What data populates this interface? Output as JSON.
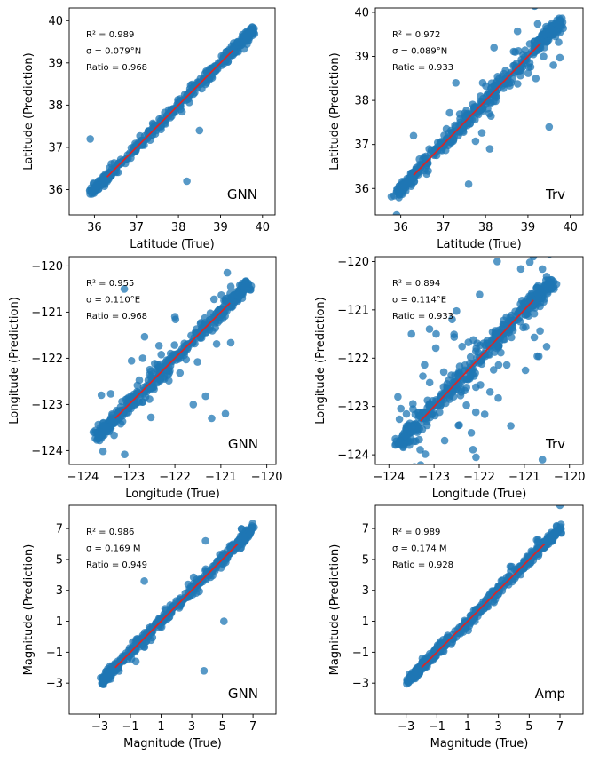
{
  "figure": {
    "point_color": "#1f77b4",
    "fit_color": "#d62728"
  },
  "chart_data": [
    {
      "type": "scatter",
      "id": "lat-gnn",
      "xlabel": "Latitude (True)",
      "ylabel": "Latitude (Prediction)",
      "xlim": [
        35.4,
        40.3
      ],
      "ylim": [
        35.4,
        40.3
      ],
      "xticks": [
        36,
        37,
        38,
        39,
        40
      ],
      "yticks": [
        36,
        37,
        38,
        39,
        40
      ],
      "xtick_labels": [
        "36",
        "37",
        "38",
        "39",
        "40"
      ],
      "ytick_labels": [
        "36",
        "37",
        "38",
        "39",
        "40"
      ],
      "fit_line": [
        [
          36.3,
          36.3
        ],
        [
          39.3,
          39.3
        ]
      ],
      "stats": [
        "R² = 0.989",
        "σ = 0.079°N",
        "Ratio  = 0.968"
      ],
      "tag": "GNN",
      "outliers": [
        [
          35.9,
          37.2
        ],
        [
          38.2,
          36.2
        ],
        [
          38.5,
          37.4
        ]
      ],
      "gen": {
        "lo": 35.9,
        "hi": 39.8,
        "n": 320,
        "noise": 0.07,
        "extra": 0.16,
        "extra_n": 18
      }
    },
    {
      "type": "scatter",
      "id": "lat-trv",
      "xlabel": "Latitude (True)",
      "ylabel": "Latitude (Prediction)",
      "xlim": [
        35.4,
        40.3
      ],
      "ylim": [
        35.4,
        40.1
      ],
      "xticks": [
        36,
        37,
        38,
        39,
        40
      ],
      "yticks": [
        36,
        37,
        38,
        39,
        40
      ],
      "xtick_labels": [
        "36",
        "37",
        "38",
        "39",
        "40"
      ],
      "ytick_labels": [
        "36",
        "37",
        "38",
        "39",
        "40"
      ],
      "fit_line": [
        [
          36.3,
          36.3
        ],
        [
          39.3,
          39.3
        ]
      ],
      "stats": [
        "R² = 0.972",
        "σ = 0.089°N",
        "Ratio  = 0.933"
      ],
      "tag": "Trv",
      "outliers": [
        [
          35.9,
          35.4
        ],
        [
          37.6,
          36.1
        ],
        [
          38.2,
          39.2
        ],
        [
          39.6,
          38.8
        ],
        [
          39.5,
          37.4
        ],
        [
          37.3,
          38.4
        ],
        [
          38.7,
          39.1
        ],
        [
          36.3,
          37.2
        ],
        [
          38.1,
          36.9
        ]
      ],
      "gen": {
        "lo": 35.9,
        "hi": 39.8,
        "n": 320,
        "noise": 0.09,
        "extra": 0.35,
        "extra_n": 55
      }
    },
    {
      "type": "scatter",
      "id": "lon-gnn",
      "xlabel": "Longitude (True)",
      "ylabel": "Longitude (Prediction)",
      "xlim": [
        -124.3,
        -119.8
      ],
      "ylim": [
        -124.3,
        -119.8
      ],
      "xticks": [
        -124,
        -123,
        -122,
        -121,
        -120
      ],
      "yticks": [
        -124,
        -123,
        -122,
        -121,
        -120
      ],
      "xtick_labels": [
        "−124",
        "−123",
        "−122",
        "−121",
        "−120"
      ],
      "ytick_labels": [
        "−124",
        "−123",
        "−122",
        "−121",
        "−120"
      ],
      "fit_line": [
        [
          -123.3,
          -123.3
        ],
        [
          -120.8,
          -120.8
        ]
      ],
      "stats": [
        "R² = 0.955",
        "σ = 0.110°E",
        "Ratio  = 0.968"
      ],
      "tag": "GNN",
      "outliers": [
        [
          -123.1,
          -120.5
        ],
        [
          -121.2,
          -123.3
        ],
        [
          -120.9,
          -123.2
        ],
        [
          -122.0,
          -121.1
        ],
        [
          -122.7,
          -122.0
        ],
        [
          -123.6,
          -122.8
        ],
        [
          -121.6,
          -123.0
        ]
      ],
      "gen": {
        "lo": -123.7,
        "hi": -120.4,
        "n": 320,
        "noise": 0.09,
        "extra": 0.5,
        "extra_n": 45
      }
    },
    {
      "type": "scatter",
      "id": "lon-trv",
      "xlabel": "Longitude (True)",
      "ylabel": "Longitude (Prediction)",
      "xlim": [
        -124.3,
        -119.7
      ],
      "ylim": [
        -124.2,
        -119.9
      ],
      "xticks": [
        -124,
        -123,
        -122,
        -121,
        -120
      ],
      "yticks": [
        -124,
        -123,
        -122,
        -121,
        -120
      ],
      "xtick_labels": [
        "−124",
        "−123",
        "−122",
        "−121",
        "−120"
      ],
      "ytick_labels": [
        "−124",
        "−123",
        "−122",
        "−121",
        "−120"
      ],
      "fit_line": [
        [
          -123.3,
          -123.3
        ],
        [
          -120.8,
          -120.8
        ]
      ],
      "stats": [
        "R² = 0.894",
        "σ = 0.114°E",
        "Ratio  = 0.933"
      ],
      "tag": "Trv",
      "outliers": [
        [
          -121.6,
          -120.0
        ],
        [
          -123.1,
          -121.4
        ],
        [
          -123.5,
          -121.5
        ],
        [
          -120.6,
          -124.1
        ],
        [
          -121.3,
          -123.4
        ],
        [
          -123.8,
          -122.8
        ],
        [
          -122.6,
          -121.2
        ],
        [
          -120.8,
          -119.9
        ]
      ],
      "gen": {
        "lo": -123.8,
        "hi": -120.4,
        "n": 320,
        "noise": 0.12,
        "extra": 0.8,
        "extra_n": 95
      }
    },
    {
      "type": "scatter",
      "id": "mag-gnn",
      "xlabel": "Magnitude (True)",
      "ylabel": "Magnitude (Prediction)",
      "xlim": [
        -5.0,
        8.5
      ],
      "ylim": [
        -5.0,
        8.5
      ],
      "xticks": [
        -3,
        -1,
        1,
        3,
        5,
        7
      ],
      "yticks": [
        -3,
        -1,
        1,
        3,
        5,
        7
      ],
      "xtick_labels": [
        "−3",
        "−1",
        "1",
        "3",
        "5",
        "7"
      ],
      "ytick_labels": [
        "−3",
        "−1",
        "1",
        "3",
        "5",
        "7"
      ],
      "fit_line": [
        [
          -2.0,
          -2.0
        ],
        [
          6.0,
          6.0
        ]
      ],
      "stats": [
        "R² = 0.986",
        "σ = 0.169 M",
        "Ratio  = 0.949"
      ],
      "tag": "GNN",
      "outliers": [
        [
          -0.1,
          3.6
        ],
        [
          3.8,
          -2.2
        ],
        [
          5.1,
          1.0
        ],
        [
          3.9,
          6.2
        ]
      ],
      "gen": {
        "lo": -2.9,
        "hi": 7.0,
        "n": 330,
        "noise": 0.18,
        "extra": 0.4,
        "extra_n": 20
      }
    },
    {
      "type": "scatter",
      "id": "mag-amp",
      "xlabel": "Magnitude (True)",
      "ylabel": "Magnitude (Prediction)",
      "xlim": [
        -5.0,
        8.5
      ],
      "ylim": [
        -5.0,
        8.5
      ],
      "xticks": [
        -3,
        -1,
        1,
        3,
        5,
        7
      ],
      "yticks": [
        -3,
        -1,
        1,
        3,
        5,
        7
      ],
      "xtick_labels": [
        "−3",
        "−1",
        "1",
        "3",
        "5",
        "7"
      ],
      "ytick_labels": [
        "−3",
        "−1",
        "1",
        "3",
        "5",
        "7"
      ],
      "fit_line": [
        [
          -2.0,
          -2.0
        ],
        [
          6.0,
          6.0
        ]
      ],
      "stats": [
        "R² = 0.989",
        "σ = 0.174 M",
        "Ratio  = 0.928"
      ],
      "tag": "Amp",
      "outliers": [
        [
          7.0,
          8.5
        ]
      ],
      "gen": {
        "lo": -2.9,
        "hi": 7.0,
        "n": 330,
        "noise": 0.2,
        "extra": 0.35,
        "extra_n": 20
      }
    }
  ]
}
